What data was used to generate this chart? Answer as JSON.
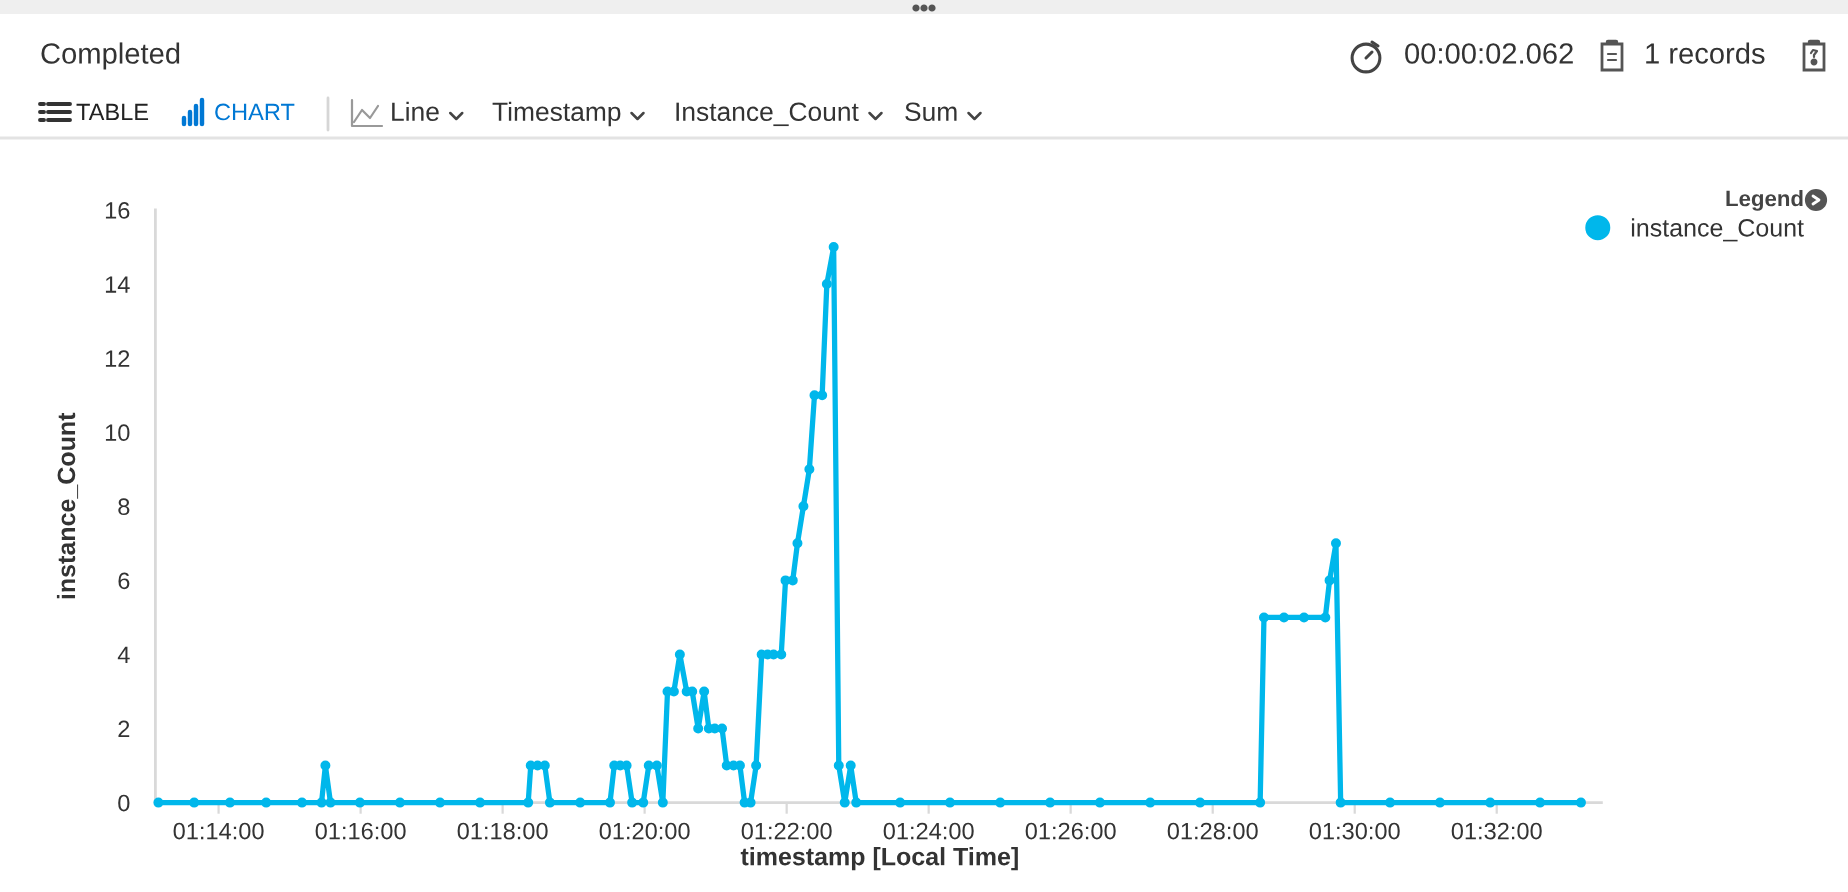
{
  "chart_data": {
    "type": "line",
    "xlabel": "timestamp [Local Time]",
    "ylabel": "instance_Count",
    "legend_title": "Legend",
    "legend": "top right",
    "marker": "circle",
    "line_style": "solid",
    "x": [
      1.2192,
      1.2276,
      1.236,
      1.2445,
      1.2529,
      1.2575,
      1.2584,
      1.2596,
      1.2665,
      1.2759,
      1.2853,
      1.2947,
      1.306,
      1.3066,
      1.3082,
      1.3099,
      1.3111,
      1.3182,
      1.3252,
      1.3262,
      1.3276,
      1.3291,
      1.3304,
      1.333,
      1.3343,
      1.3362,
      1.3376,
      1.3387,
      1.3402,
      1.3416,
      1.3432,
      1.3445,
      1.3459,
      1.3473,
      1.3484,
      1.3498,
      1.3515,
      1.3526,
      1.3542,
      1.3557,
      1.3568,
      1.3582,
      1.3595,
      1.3608,
      1.3622,
      1.3636,
      1.3654,
      1.3664,
      1.3681,
      1.3692,
      1.3706,
      1.372,
      1.3732,
      1.375,
      1.3761,
      1.3777,
      1.3789,
      1.3803,
      1.3817,
      1.383,
      1.3933,
      1.405,
      1.4168,
      1.4285,
      1.4402,
      1.452,
      1.4637,
      1.4778,
      1.4787,
      1.4834,
      1.4881,
      1.4931,
      1.4941,
      1.4956,
      1.4967,
      1.5083,
      1.52,
      1.5318,
      1.5435,
      1.5531
    ],
    "series": [
      {
        "name": "instance_Count",
        "color": "#00b7eb",
        "values": [
          0,
          0,
          0,
          0,
          0,
          0,
          1,
          0,
          0,
          0,
          0,
          0,
          0,
          1,
          1,
          1,
          0,
          0,
          0,
          1,
          1,
          1,
          0,
          0,
          1,
          1,
          0,
          3,
          3,
          4,
          3,
          3,
          2,
          3,
          2,
          2,
          2,
          1,
          1,
          1,
          0,
          0,
          1,
          4,
          4,
          4,
          4,
          6,
          6,
          7,
          8,
          9,
          11,
          11,
          14,
          15,
          1,
          0,
          1,
          0,
          0,
          0,
          0,
          0,
          0,
          0,
          0,
          0,
          5,
          5,
          5,
          5,
          6,
          7,
          0,
          0,
          0,
          0,
          0,
          0
        ]
      }
    ],
    "xlim": [
      1.2185,
      1.5579
    ],
    "xticks": [
      {
        "value": 1.23333,
        "label": "01:14:00"
      },
      {
        "value": 1.26667,
        "label": "01:16:00"
      },
      {
        "value": 1.3,
        "label": "01:18:00"
      },
      {
        "value": 1.33333,
        "label": "01:20:00"
      },
      {
        "value": 1.36667,
        "label": "01:22:00"
      },
      {
        "value": 1.4,
        "label": "01:24:00"
      },
      {
        "value": 1.43333,
        "label": "01:26:00"
      },
      {
        "value": 1.46667,
        "label": "01:28:00"
      },
      {
        "value": 1.5,
        "label": "01:30:00"
      },
      {
        "value": 1.53333,
        "label": "01:32:00"
      }
    ],
    "ylim": [
      0,
      16
    ],
    "yticks": [
      0,
      2,
      4,
      6,
      8,
      10,
      12,
      14,
      16
    ],
    "annotations": [
      "Completed",
      "00:00:02.062",
      "1 records",
      "TABLE",
      "CHART",
      "Line",
      "Timestamp",
      "Instance_Count",
      "Sum"
    ]
  }
}
